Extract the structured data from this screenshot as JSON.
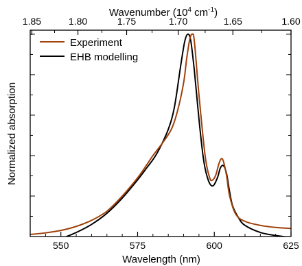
{
  "chart_data": {
    "type": "line",
    "xlabel": "Wavelength (nm)",
    "ylabel": "Normalized absorption",
    "top_axis": {
      "label_parts": [
        "Wavenumber (10",
        "4",
        " cm",
        "-1",
        ")"
      ],
      "ticks": [
        1.85,
        1.8,
        1.75,
        1.7,
        1.65,
        1.6
      ],
      "tick_labels": [
        "1.85",
        "1.80",
        "1.75",
        "1.70",
        "1.65",
        "1.60"
      ]
    },
    "xlim": [
      540,
      625
    ],
    "ylim": [
      0,
      1.02
    ],
    "x_ticks": [
      550,
      575,
      600,
      625
    ],
    "x_tick_labels": [
      "550",
      "575",
      "600",
      "625"
    ],
    "legend": {
      "position": "top-left"
    },
    "series": [
      {
        "name": "Experiment",
        "color": "#a0400a",
        "x": [
          540,
          545,
          550,
          555,
          560,
          565,
          570,
          575,
          578,
          580,
          583,
          586,
          588,
          590,
          591,
          592,
          592.8,
          593.5,
          595,
          597,
          598.5,
          599.5,
          600.5,
          601.5,
          602.3,
          603,
          604,
          605,
          607,
          610,
          615,
          620,
          625
        ],
        "y": [
          0.01,
          0.018,
          0.03,
          0.05,
          0.08,
          0.125,
          0.2,
          0.29,
          0.355,
          0.4,
          0.46,
          0.53,
          0.62,
          0.76,
          0.88,
          0.975,
          1.0,
          0.965,
          0.7,
          0.4,
          0.29,
          0.28,
          0.305,
          0.36,
          0.385,
          0.37,
          0.3,
          0.2,
          0.11,
          0.075,
          0.055,
          0.045,
          0.04
        ]
      },
      {
        "name": "EHB modelling",
        "color": "#000000",
        "x": [
          540,
          545,
          550,
          555,
          560,
          565,
          570,
          575,
          578,
          580,
          582,
          585,
          587,
          589,
          590.3,
          591.3,
          592.3,
          593.5,
          595,
          596.5,
          598,
          599.5,
          601,
          602,
          603,
          604,
          605,
          606,
          608,
          610,
          615,
          620,
          625
        ],
        "y": [
          -0.04,
          -0.03,
          -0.01,
          0.02,
          0.06,
          0.115,
          0.19,
          0.28,
          0.34,
          0.38,
          0.43,
          0.53,
          0.64,
          0.84,
          0.96,
          1.0,
          0.97,
          0.82,
          0.58,
          0.38,
          0.28,
          0.25,
          0.29,
          0.34,
          0.35,
          0.31,
          0.22,
          0.15,
          0.09,
          0.055,
          0.02,
          0.005,
          -0.005
        ]
      }
    ]
  }
}
